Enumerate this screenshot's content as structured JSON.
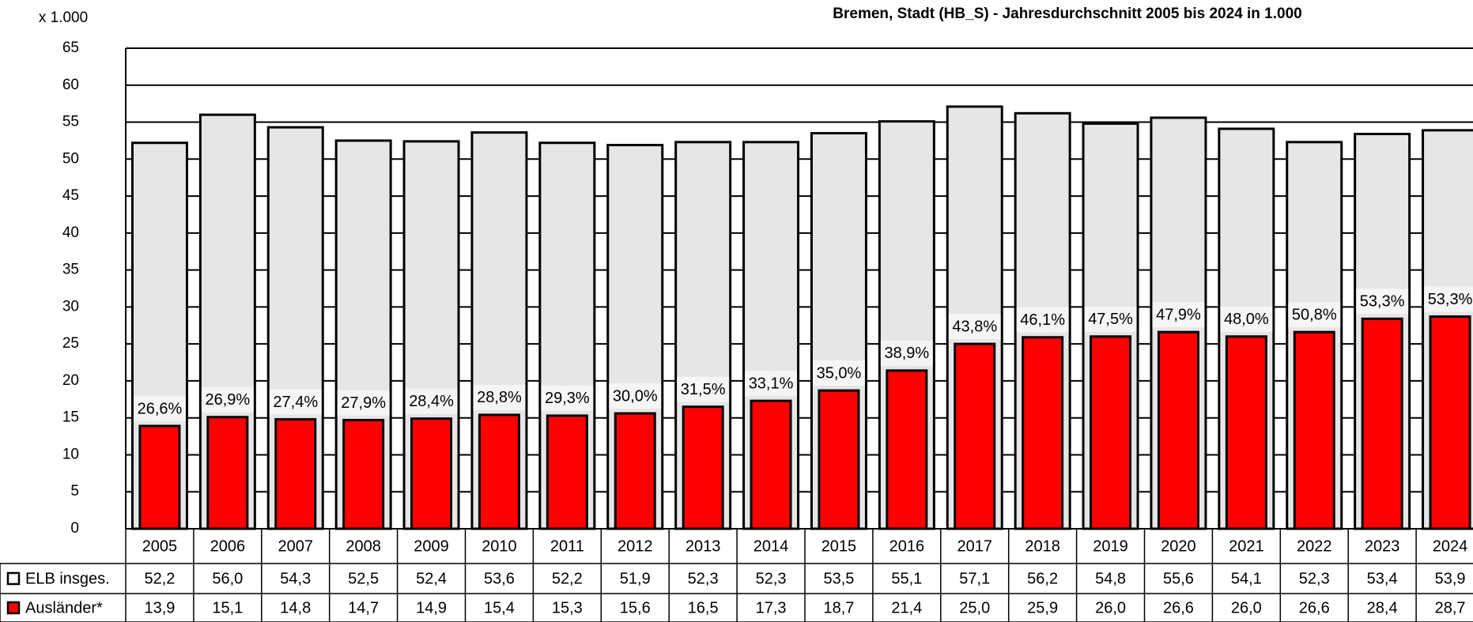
{
  "chart_data": {
    "type": "bar",
    "title": "Bremen, Stadt (HB_S) - Jahresdurchschnitt 2005 bis 2024 in 1.000",
    "y_unit_label": "x 1.000",
    "categories": [
      "2005",
      "2006",
      "2007",
      "2008",
      "2009",
      "2010",
      "2011",
      "2012",
      "2013",
      "2014",
      "2015",
      "2016",
      "2017",
      "2018",
      "2019",
      "2020",
      "2021",
      "2022",
      "2023",
      "2024"
    ],
    "series": [
      {
        "name": "ELB insges.",
        "color": "#e6e6e6",
        "values": [
          52.2,
          56.0,
          54.3,
          52.5,
          52.4,
          53.6,
          52.2,
          51.9,
          52.3,
          52.3,
          53.5,
          55.1,
          57.1,
          56.2,
          54.8,
          55.6,
          54.1,
          52.3,
          53.4,
          53.9
        ],
        "value_labels": [
          "52,2",
          "56,0",
          "54,3",
          "52,5",
          "52,4",
          "53,6",
          "52,2",
          "51,9",
          "52,3",
          "52,3",
          "53,5",
          "55,1",
          "57,1",
          "56,2",
          "54,8",
          "55,6",
          "54,1",
          "52,3",
          "53,4",
          "53,9"
        ]
      },
      {
        "name": "Ausländer*",
        "color": "#ff0000",
        "values": [
          13.9,
          15.1,
          14.8,
          14.7,
          14.9,
          15.4,
          15.3,
          15.6,
          16.5,
          17.3,
          18.7,
          21.4,
          25.0,
          25.9,
          26.0,
          26.6,
          26.0,
          26.6,
          28.4,
          28.7
        ],
        "value_labels": [
          "13,9",
          "15,1",
          "14,8",
          "14,7",
          "14,9",
          "15,4",
          "15,3",
          "15,6",
          "16,5",
          "17,3",
          "18,7",
          "21,4",
          "25,0",
          "25,9",
          "26,0",
          "26,6",
          "26,0",
          "26,6",
          "28,4",
          "28,7"
        ]
      }
    ],
    "share_labels": [
      "26,6%",
      "26,9%",
      "27,4%",
      "27,9%",
      "28,4%",
      "28,8%",
      "29,3%",
      "30,0%",
      "31,5%",
      "33,1%",
      "35,0%",
      "38,9%",
      "43,8%",
      "46,1%",
      "47,5%",
      "47,9%",
      "48,0%",
      "50,8%",
      "53,3%",
      "53,3%"
    ],
    "ylim": [
      0,
      65
    ],
    "yticks": [
      0,
      5,
      10,
      15,
      20,
      25,
      30,
      35,
      40,
      45,
      50,
      55,
      60,
      65
    ],
    "grid": true
  }
}
